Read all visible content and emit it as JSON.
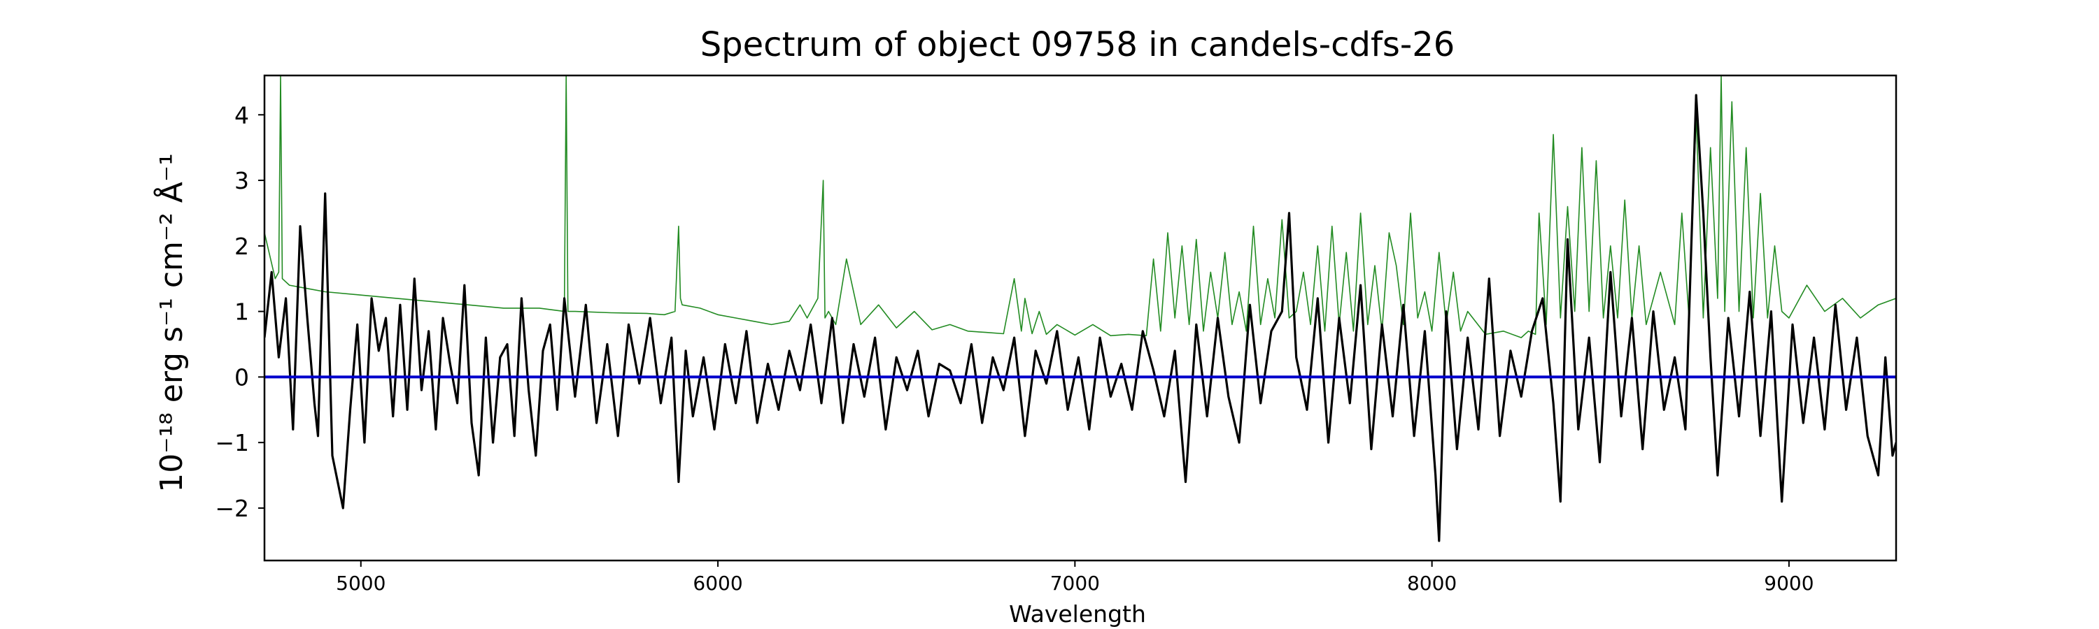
{
  "chart_data": {
    "type": "line",
    "title": "Spectrum of object 09758 in candels-cdfs-26",
    "xlabel": "Wavelength",
    "ylabel": "10⁻¹⁸ erg s⁻¹ cm⁻² Å⁻¹",
    "xlim": [
      4730,
      9300
    ],
    "ylim": [
      -2.8,
      4.6
    ],
    "xticks": [
      5000,
      6000,
      7000,
      8000,
      9000
    ],
    "yticks": [
      -2,
      -1,
      0,
      1,
      2,
      3,
      4
    ],
    "grid": false,
    "legend": "none",
    "colors": {
      "flux": "#000000",
      "noise": "#228B22",
      "zero": "#0000cc"
    },
    "series": [
      {
        "id": "flux",
        "color": "#000000",
        "x": [
          4730,
          4750,
          4770,
          4790,
          4810,
          4830,
          4850,
          4870,
          4880,
          4900,
          4920,
          4950,
          4970,
          4990,
          5010,
          5030,
          5050,
          5070,
          5090,
          5110,
          5130,
          5150,
          5170,
          5190,
          5210,
          5230,
          5250,
          5270,
          5290,
          5310,
          5330,
          5350,
          5370,
          5390,
          5410,
          5430,
          5450,
          5470,
          5490,
          5510,
          5530,
          5550,
          5570,
          5600,
          5630,
          5660,
          5690,
          5720,
          5750,
          5780,
          5810,
          5840,
          5870,
          5890,
          5910,
          5930,
          5960,
          5990,
          6020,
          6050,
          6080,
          6110,
          6140,
          6170,
          6200,
          6230,
          6260,
          6290,
          6320,
          6350,
          6380,
          6410,
          6440,
          6470,
          6500,
          6530,
          6560,
          6590,
          6620,
          6650,
          6680,
          6710,
          6740,
          6770,
          6800,
          6830,
          6860,
          6890,
          6920,
          6950,
          6980,
          7010,
          7040,
          7070,
          7100,
          7130,
          7160,
          7190,
          7220,
          7250,
          7280,
          7310,
          7340,
          7370,
          7400,
          7430,
          7460,
          7490,
          7520,
          7550,
          7580,
          7600,
          7620,
          7650,
          7680,
          7710,
          7740,
          7770,
          7800,
          7830,
          7860,
          7890,
          7920,
          7950,
          7980,
          8010,
          8020,
          8040,
          8070,
          8100,
          8130,
          8160,
          8190,
          8220,
          8250,
          8280,
          8310,
          8340,
          8360,
          8380,
          8410,
          8440,
          8470,
          8500,
          8530,
          8560,
          8590,
          8620,
          8650,
          8680,
          8710,
          8740,
          8760,
          8780,
          8800,
          8830,
          8860,
          8890,
          8920,
          8950,
          8980,
          9010,
          9040,
          9070,
          9100,
          9130,
          9160,
          9190,
          9220,
          9250,
          9270,
          9290,
          9300
        ],
        "y": [
          0.6,
          1.6,
          0.3,
          1.2,
          -0.8,
          2.3,
          0.9,
          -0.4,
          -0.9,
          2.8,
          -1.2,
          -2.0,
          -0.5,
          0.8,
          -1.0,
          1.2,
          0.4,
          0.9,
          -0.6,
          1.1,
          -0.5,
          1.5,
          -0.2,
          0.7,
          -0.8,
          0.9,
          0.2,
          -0.4,
          1.4,
          -0.7,
          -1.5,
          0.6,
          -1.0,
          0.3,
          0.5,
          -0.9,
          1.2,
          -0.2,
          -1.2,
          0.4,
          0.8,
          -0.5,
          1.2,
          -0.3,
          1.1,
          -0.7,
          0.5,
          -0.9,
          0.8,
          -0.1,
          0.9,
          -0.4,
          0.6,
          -1.6,
          0.4,
          -0.6,
          0.3,
          -0.8,
          0.5,
          -0.4,
          0.7,
          -0.7,
          0.2,
          -0.5,
          0.4,
          -0.2,
          0.8,
          -0.4,
          0.9,
          -0.7,
          0.5,
          -0.3,
          0.6,
          -0.8,
          0.3,
          -0.2,
          0.4,
          -0.6,
          0.2,
          0.1,
          -0.4,
          0.5,
          -0.7,
          0.3,
          -0.2,
          0.6,
          -0.9,
          0.4,
          -0.1,
          0.7,
          -0.5,
          0.3,
          -0.8,
          0.6,
          -0.3,
          0.2,
          -0.5,
          0.7,
          0.1,
          -0.6,
          0.4,
          -1.6,
          0.8,
          -0.6,
          0.9,
          -0.3,
          -1.0,
          1.1,
          -0.4,
          0.7,
          1.0,
          2.5,
          0.3,
          -0.5,
          1.2,
          -1.0,
          0.9,
          -0.4,
          1.4,
          -1.1,
          0.8,
          -0.6,
          1.1,
          -0.9,
          0.7,
          -1.5,
          -2.5,
          1.0,
          -1.1,
          0.6,
          -0.8,
          1.5,
          -0.9,
          0.4,
          -0.3,
          0.7,
          1.2,
          -0.4,
          -1.9,
          2.1,
          -0.8,
          0.6,
          -1.3,
          1.6,
          -0.6,
          0.9,
          -1.1,
          1.0,
          -0.5,
          0.3,
          -0.8,
          4.3,
          2.5,
          0.3,
          -1.5,
          0.9,
          -0.6,
          1.3,
          -0.9,
          1.0,
          -1.9,
          0.8,
          -0.7,
          0.6,
          -0.8,
          1.1,
          -0.5,
          0.6,
          -0.9,
          -1.5,
          0.3,
          -1.2,
          -1.0
        ],
        "note_bind": ""
      },
      {
        "id": "noise",
        "color": "#228B22",
        "x": [
          4730,
          4760,
          4770,
          4775,
          4780,
          4800,
          4850,
          4900,
          5000,
          5100,
          5200,
          5300,
          5400,
          5500,
          5570,
          5575,
          5580,
          5600,
          5700,
          5800,
          5850,
          5880,
          5890,
          5895,
          5900,
          5950,
          6000,
          6050,
          6100,
          6150,
          6200,
          6230,
          6250,
          6280,
          6295,
          6300,
          6310,
          6330,
          6360,
          6400,
          6450,
          6500,
          6550,
          6600,
          6650,
          6700,
          6750,
          6800,
          6830,
          6850,
          6860,
          6880,
          6900,
          6920,
          6950,
          7000,
          7050,
          7100,
          7150,
          7200,
          7220,
          7240,
          7260,
          7280,
          7300,
          7320,
          7340,
          7360,
          7380,
          7400,
          7420,
          7440,
          7460,
          7480,
          7500,
          7520,
          7540,
          7560,
          7580,
          7600,
          7620,
          7640,
          7660,
          7680,
          7700,
          7720,
          7740,
          7760,
          7780,
          7800,
          7820,
          7840,
          7860,
          7880,
          7900,
          7920,
          7940,
          7960,
          7980,
          8000,
          8020,
          8040,
          8060,
          8080,
          8100,
          8150,
          8200,
          8250,
          8270,
          8290,
          8300,
          8320,
          8340,
          8360,
          8380,
          8400,
          8420,
          8440,
          8460,
          8480,
          8500,
          8520,
          8540,
          8560,
          8580,
          8600,
          8620,
          8640,
          8660,
          8680,
          8700,
          8720,
          8740,
          8760,
          8780,
          8800,
          8810,
          8820,
          8840,
          8860,
          8880,
          8900,
          8920,
          8940,
          8960,
          8980,
          9000,
          9050,
          9100,
          9150,
          9200,
          9250,
          9300
        ],
        "y": [
          2.2,
          1.5,
          1.6,
          4.6,
          1.5,
          1.4,
          1.35,
          1.3,
          1.25,
          1.2,
          1.15,
          1.1,
          1.05,
          1.05,
          1.0,
          4.6,
          1.0,
          1.0,
          0.98,
          0.97,
          0.95,
          1.0,
          2.3,
          1.2,
          1.1,
          1.05,
          0.95,
          0.9,
          0.85,
          0.8,
          0.85,
          1.1,
          0.9,
          1.2,
          3.0,
          0.9,
          1.0,
          0.8,
          1.8,
          0.8,
          1.1,
          0.75,
          1.0,
          0.72,
          0.8,
          0.7,
          0.68,
          0.66,
          1.5,
          0.7,
          1.2,
          0.66,
          1.0,
          0.65,
          0.8,
          0.64,
          0.8,
          0.63,
          0.65,
          0.63,
          1.8,
          0.7,
          2.2,
          0.9,
          2.0,
          0.8,
          2.1,
          0.7,
          1.6,
          0.9,
          1.9,
          0.8,
          1.3,
          0.7,
          2.3,
          0.8,
          1.5,
          0.9,
          2.4,
          0.9,
          1.0,
          1.6,
          0.8,
          2.0,
          0.7,
          2.3,
          0.8,
          1.9,
          0.7,
          2.5,
          0.8,
          1.7,
          0.7,
          2.2,
          1.7,
          0.8,
          2.5,
          0.9,
          1.3,
          0.7,
          1.9,
          0.8,
          1.6,
          0.7,
          1.0,
          0.65,
          0.7,
          0.6,
          0.7,
          0.65,
          2.5,
          0.8,
          3.7,
          0.9,
          2.6,
          1.0,
          3.5,
          1.0,
          3.3,
          0.9,
          2.0,
          0.9,
          2.7,
          0.9,
          2.0,
          0.8,
          1.2,
          1.6,
          1.2,
          0.8,
          2.5,
          0.9,
          4.0,
          0.9,
          3.5,
          1.2,
          4.6,
          1.0,
          4.2,
          1.0,
          3.5,
          0.9,
          2.8,
          0.9,
          2.0,
          1.0,
          0.9,
          1.4,
          1.0,
          1.2,
          0.9,
          1.1,
          1.2
        ]
      }
    ]
  }
}
